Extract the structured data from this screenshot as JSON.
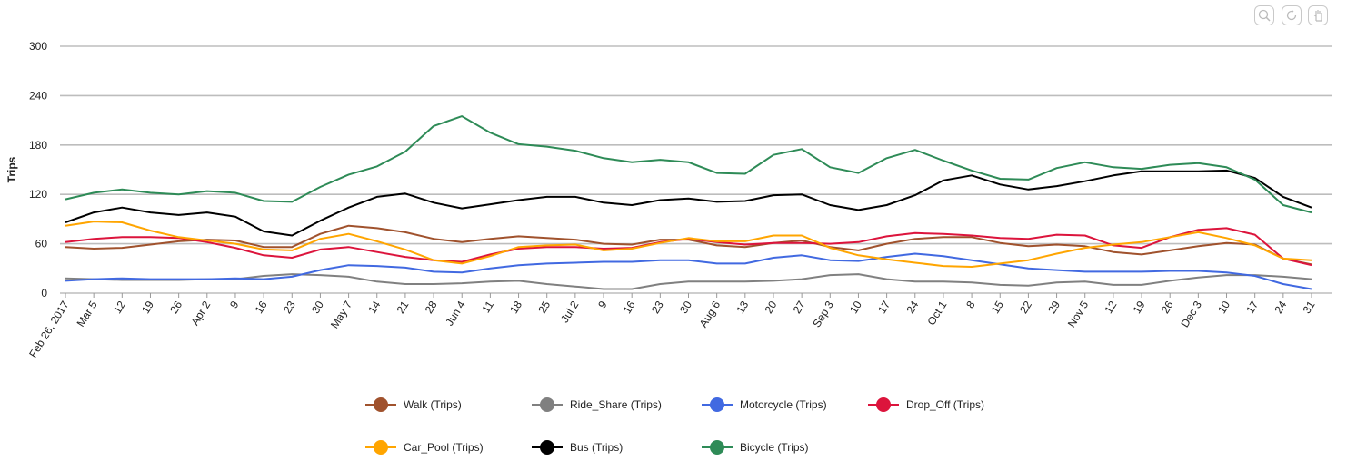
{
  "toolbar": {
    "zoom_icon": "zoom-icon",
    "reset_icon": "reset-icon",
    "pan_icon": "pan-icon"
  },
  "chart_data": {
    "type": "line",
    "ylabel": "Trips",
    "ylim": [
      0,
      300
    ],
    "yticks": [
      0,
      60,
      120,
      180,
      240,
      300
    ],
    "grid": true,
    "legend_position": "bottom",
    "x_tick_labels": [
      "Feb 26, 2017",
      "Mar 5",
      "12",
      "19",
      "26",
      "Apr 2",
      "9",
      "16",
      "23",
      "30",
      "May 7",
      "14",
      "21",
      "28",
      "Jun 4",
      "11",
      "18",
      "25",
      "Jul 2",
      "9",
      "16",
      "23",
      "30",
      "Aug 6",
      "13",
      "20",
      "27",
      "Sep 3",
      "10",
      "17",
      "24",
      "Oct 1",
      "8",
      "15",
      "22",
      "29",
      "Nov 5",
      "12",
      "19",
      "26",
      "Dec 3",
      "10",
      "17",
      "24",
      "31"
    ],
    "series": [
      {
        "name": "Walk (Trips)",
        "color": "#a0522d",
        "values": [
          56,
          54,
          55,
          59,
          63,
          65,
          64,
          56,
          56,
          72,
          82,
          79,
          74,
          66,
          62,
          66,
          69,
          67,
          65,
          60,
          59,
          65,
          65,
          58,
          56,
          61,
          64,
          56,
          52,
          60,
          66,
          68,
          68,
          61,
          57,
          59,
          57,
          50,
          47,
          52,
          57,
          61,
          59,
          42,
          35
        ]
      },
      {
        "name": "Ride_Share (Trips)",
        "color": "#808080",
        "values": [
          18,
          17,
          16,
          16,
          16,
          17,
          17,
          21,
          23,
          22,
          20,
          14,
          11,
          11,
          12,
          14,
          15,
          11,
          8,
          5,
          5,
          11,
          14,
          14,
          14,
          15,
          17,
          22,
          23,
          17,
          14,
          14,
          13,
          10,
          9,
          13,
          14,
          10,
          10,
          15,
          19,
          22,
          22,
          20,
          17
        ]
      },
      {
        "name": "Motorcycle (Trips)",
        "color": "#4169e1",
        "values": [
          15,
          17,
          18,
          17,
          17,
          17,
          18,
          17,
          20,
          28,
          34,
          33,
          31,
          26,
          25,
          30,
          34,
          36,
          37,
          38,
          38,
          40,
          40,
          36,
          36,
          43,
          46,
          40,
          39,
          44,
          48,
          45,
          40,
          35,
          30,
          28,
          26,
          26,
          26,
          27,
          27,
          25,
          21,
          11,
          5
        ]
      },
      {
        "name": "Drop_Off (Trips)",
        "color": "#dc143c",
        "values": [
          62,
          66,
          68,
          68,
          67,
          62,
          55,
          46,
          43,
          53,
          56,
          50,
          44,
          40,
          38,
          47,
          54,
          56,
          56,
          54,
          55,
          62,
          66,
          62,
          59,
          61,
          61,
          60,
          62,
          69,
          73,
          72,
          70,
          67,
          66,
          71,
          70,
          58,
          55,
          68,
          77,
          79,
          71,
          42,
          34
        ]
      },
      {
        "name": "Car_Pool (Trips)",
        "color": "#ffa500",
        "values": [
          82,
          87,
          86,
          76,
          68,
          64,
          60,
          53,
          52,
          66,
          72,
          63,
          53,
          40,
          36,
          45,
          56,
          58,
          59,
          52,
          54,
          61,
          67,
          63,
          63,
          70,
          70,
          55,
          46,
          41,
          37,
          33,
          32,
          36,
          40,
          48,
          55,
          59,
          62,
          68,
          74,
          67,
          58,
          42,
          40
        ]
      },
      {
        "name": "Bus (Trips)",
        "color": "#000000",
        "values": [
          86,
          98,
          104,
          98,
          95,
          98,
          93,
          75,
          70,
          88,
          104,
          117,
          121,
          110,
          103,
          108,
          113,
          117,
          117,
          110,
          107,
          113,
          115,
          111,
          112,
          119,
          120,
          107,
          101,
          107,
          119,
          137,
          143,
          132,
          126,
          130,
          136,
          143,
          148,
          148,
          148,
          149,
          140,
          117,
          104
        ]
      },
      {
        "name": "Bicycle (Trips)",
        "color": "#2e8b57",
        "values": [
          114,
          122,
          126,
          122,
          120,
          124,
          122,
          112,
          111,
          129,
          144,
          154,
          172,
          203,
          215,
          195,
          181,
          178,
          173,
          164,
          159,
          162,
          159,
          146,
          145,
          168,
          175,
          153,
          146,
          164,
          174,
          161,
          149,
          139,
          138,
          152,
          159,
          153,
          151,
          156,
          158,
          153,
          138,
          107,
          98
        ]
      }
    ]
  }
}
